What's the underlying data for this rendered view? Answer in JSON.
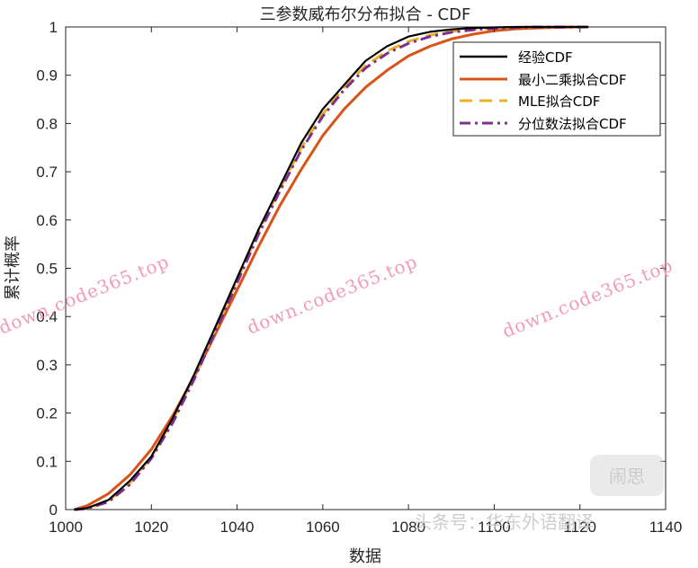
{
  "chart_data": {
    "type": "line",
    "title": "三参数威布尔分布拟合 - CDF",
    "xlabel": "数据",
    "ylabel": "累计概率",
    "xlim": [
      1000,
      1140
    ],
    "ylim": [
      0,
      1
    ],
    "xticks": [
      1000,
      1020,
      1040,
      1060,
      1080,
      1100,
      1120,
      1140
    ],
    "yticks": [
      0,
      0.1,
      0.2,
      0.3,
      0.4,
      0.5,
      0.6,
      0.7,
      0.8,
      0.9,
      1
    ],
    "grid": false,
    "legend_position": "top-right",
    "series": [
      {
        "name": "经验CDF",
        "color": "#000000",
        "style": "solid",
        "x": [
          1002,
          1005,
          1010,
          1015,
          1020,
          1025,
          1030,
          1035,
          1040,
          1045,
          1050,
          1055,
          1060,
          1065,
          1070,
          1075,
          1080,
          1085,
          1090,
          1095,
          1100,
          1105,
          1110,
          1115,
          1122
        ],
        "y": [
          0,
          0.003,
          0.02,
          0.06,
          0.11,
          0.19,
          0.28,
          0.38,
          0.48,
          0.58,
          0.67,
          0.76,
          0.83,
          0.88,
          0.93,
          0.96,
          0.98,
          0.99,
          0.995,
          0.998,
          0.999,
          1.0,
          1.0,
          1.0,
          1.0
        ]
      },
      {
        "name": "最小二乘拟合CDF",
        "color": "#d95319",
        "style": "solid",
        "x": [
          1002,
          1005,
          1010,
          1015,
          1020,
          1025,
          1030,
          1035,
          1040,
          1045,
          1050,
          1055,
          1060,
          1065,
          1070,
          1075,
          1080,
          1085,
          1090,
          1095,
          1100,
          1105,
          1110,
          1115,
          1122
        ],
        "y": [
          0,
          0.008,
          0.033,
          0.072,
          0.125,
          0.195,
          0.275,
          0.365,
          0.455,
          0.545,
          0.63,
          0.705,
          0.775,
          0.83,
          0.875,
          0.91,
          0.94,
          0.96,
          0.975,
          0.985,
          0.992,
          0.996,
          0.998,
          0.999,
          1.0
        ]
      },
      {
        "name": "MLE拟合CDF",
        "color": "#edb120",
        "style": "dashed",
        "x": [
          1002,
          1005,
          1010,
          1015,
          1020,
          1025,
          1030,
          1035,
          1040,
          1045,
          1050,
          1055,
          1060,
          1065,
          1070,
          1075,
          1080,
          1085,
          1090,
          1095,
          1100,
          1105,
          1110,
          1115,
          1122
        ],
        "y": [
          0,
          0.002,
          0.018,
          0.055,
          0.11,
          0.185,
          0.275,
          0.375,
          0.475,
          0.575,
          0.665,
          0.75,
          0.82,
          0.875,
          0.92,
          0.95,
          0.97,
          0.983,
          0.991,
          0.995,
          0.998,
          0.999,
          1.0,
          1.0,
          1.0
        ]
      },
      {
        "name": "分位数法拟合CDF",
        "color": "#7e2f8e",
        "style": "dashdot",
        "x": [
          1002,
          1005,
          1010,
          1015,
          1020,
          1025,
          1030,
          1035,
          1040,
          1045,
          1050,
          1055,
          1060,
          1065,
          1070,
          1075,
          1080,
          1085,
          1090,
          1095,
          1100,
          1105,
          1110,
          1115,
          1122
        ],
        "y": [
          0,
          0.002,
          0.016,
          0.052,
          0.106,
          0.18,
          0.27,
          0.37,
          0.47,
          0.57,
          0.66,
          0.745,
          0.815,
          0.87,
          0.915,
          0.945,
          0.966,
          0.98,
          0.989,
          0.994,
          0.997,
          0.999,
          1.0,
          1.0,
          1.0
        ]
      }
    ]
  },
  "watermarks": {
    "text_1": "down.code365.top",
    "text_2": "down.code365.top",
    "text_3": "down.code365.top",
    "bottom_text": "头条号：华东外语翻译",
    "logo_text": "闹思"
  }
}
